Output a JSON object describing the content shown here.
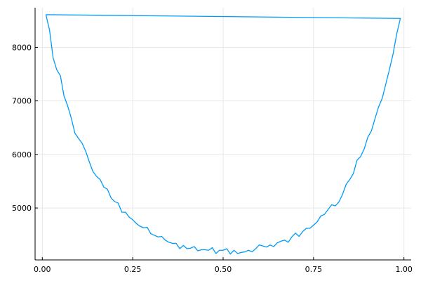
{
  "chart_data": {
    "type": "line",
    "title": "",
    "xlabel": "",
    "ylabel": "",
    "xlim": [
      -0.02,
      1.02
    ],
    "ylim": [
      4030,
      8740
    ],
    "grid": true,
    "legend": "none",
    "x_ticks": [
      0,
      0.25,
      0.5,
      0.75,
      1
    ],
    "x_tick_labels": [
      "0.00",
      "0.25",
      "0.50",
      "0.75",
      "1.00"
    ],
    "y_ticks": [
      5000,
      6000,
      7000,
      8000
    ],
    "y_tick_labels": [
      "5000",
      "6000",
      "7000",
      "8000"
    ],
    "series": [
      {
        "color": "#009AFA",
        "x": [
          0.01,
          0.02,
          0.03,
          0.04,
          0.05,
          0.06,
          0.07,
          0.08,
          0.09,
          0.1,
          0.11,
          0.12,
          0.13,
          0.14,
          0.15,
          0.16,
          0.17,
          0.18,
          0.19,
          0.2,
          0.21,
          0.22,
          0.23,
          0.24,
          0.25,
          0.26,
          0.27,
          0.28,
          0.29,
          0.3,
          0.31,
          0.32,
          0.33,
          0.34,
          0.35,
          0.36,
          0.37,
          0.38,
          0.39,
          0.4,
          0.41,
          0.42,
          0.43,
          0.44,
          0.45,
          0.46,
          0.47,
          0.48,
          0.49,
          0.5,
          0.51,
          0.52,
          0.53,
          0.54,
          0.55,
          0.56,
          0.57,
          0.58,
          0.59,
          0.6,
          0.61,
          0.62,
          0.63,
          0.64,
          0.65,
          0.66,
          0.67,
          0.68,
          0.69,
          0.7,
          0.71,
          0.72,
          0.73,
          0.74,
          0.75,
          0.76,
          0.77,
          0.78,
          0.79,
          0.8,
          0.81,
          0.82,
          0.83,
          0.84,
          0.85,
          0.86,
          0.87,
          0.88,
          0.89,
          0.9,
          0.91,
          0.92,
          0.93,
          0.94,
          0.95,
          0.96,
          0.97,
          0.98,
          0.99,
          0.01
        ],
        "values": [
          8610,
          8320,
          7800,
          7580,
          7470,
          7090,
          6910,
          6680,
          6400,
          6300,
          6210,
          6060,
          5860,
          5680,
          5590,
          5530,
          5390,
          5350,
          5190,
          5120,
          5090,
          4920,
          4920,
          4830,
          4780,
          4710,
          4660,
          4630,
          4640,
          4520,
          4490,
          4460,
          4470,
          4400,
          4360,
          4340,
          4340,
          4240,
          4300,
          4240,
          4250,
          4280,
          4200,
          4220,
          4220,
          4210,
          4260,
          4150,
          4210,
          4210,
          4240,
          4140,
          4210,
          4150,
          4170,
          4180,
          4210,
          4180,
          4240,
          4310,
          4290,
          4270,
          4310,
          4280,
          4350,
          4380,
          4400,
          4360,
          4460,
          4530,
          4470,
          4560,
          4620,
          4620,
          4680,
          4740,
          4850,
          4880,
          4970,
          5060,
          5040,
          5110,
          5250,
          5440,
          5530,
          5640,
          5890,
          5960,
          6100,
          6320,
          6440,
          6670,
          6890,
          7050,
          7320,
          7590,
          7880,
          8250,
          8540,
          8610
        ]
      }
    ]
  }
}
